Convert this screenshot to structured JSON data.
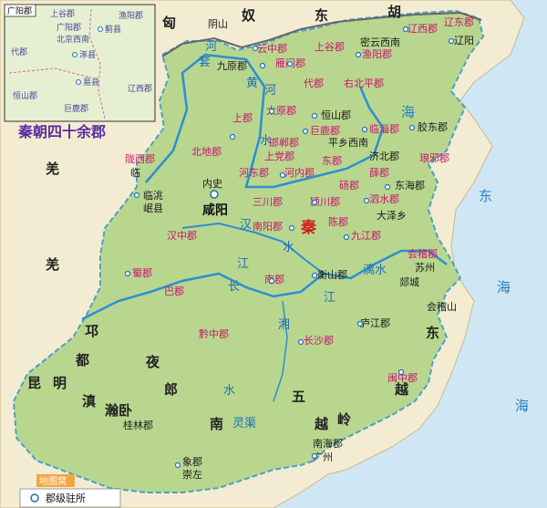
{
  "title": "秦朝四十余郡",
  "inset": {
    "title": "广阳郡",
    "labels": [
      "上谷郡",
      "广阳郡",
      "蓟县",
      "北京西南",
      "涿县",
      "易县",
      "恒山郡",
      "巨鹿郡",
      "代郡",
      "渔阳郡",
      "辽西郡"
    ]
  },
  "capital": "咸阳",
  "nation": "秦",
  "legend": {
    "label": "郡级驻所"
  },
  "watermark": "地图窝",
  "regions": [
    "匈",
    "奴",
    "东",
    "胡",
    "羌",
    "羌",
    "邛",
    "都",
    "昆",
    "明",
    "滇",
    "夜",
    "郎",
    "南",
    "越",
    "五",
    "岭",
    "东",
    "越",
    "瀚卧"
  ],
  "rivers": [
    "河",
    "套",
    "黄",
    "河",
    "水",
    "汉",
    "水",
    "江",
    "长",
    "江",
    "湘",
    "水",
    "灵渠",
    "漓水"
  ],
  "seas": [
    "海",
    "东",
    "海",
    "海"
  ],
  "commanderies": [
    "云中郡",
    "九原郡",
    "雁门郡",
    "上谷郡",
    "渔阳郡",
    "辽西郡",
    "辽东郡",
    "代郡",
    "右北平郡",
    "上郡",
    "太原郡",
    "恒山郡",
    "巨鹿郡",
    "临淄郡",
    "胶东郡",
    "北地郡",
    "陇西郡",
    "上党郡",
    "邯郸郡",
    "河东郡",
    "河内郡",
    "东郡",
    "薛郡",
    "济北郡",
    "琅邪郡",
    "三川郡",
    "颍川郡",
    "砀郡",
    "泗水郡",
    "东海郡",
    "南阳郡",
    "陈郡",
    "汉中郡",
    "九江郡",
    "会稽郡",
    "蜀郡",
    "巴郡",
    "南郡",
    "衡山郡",
    "庐江郡",
    "黔中郡",
    "长沙郡",
    "闽中郡",
    "桂林郡",
    "象郡",
    "南海郡"
  ],
  "places": [
    "阴山",
    "密云西南",
    "辽阳",
    "平乡西南",
    "临洮",
    "岷县",
    "内史",
    "大泽乡",
    "苏州",
    "郯城",
    "会稽山",
    "广州",
    "崇左",
    "临"
  ]
}
